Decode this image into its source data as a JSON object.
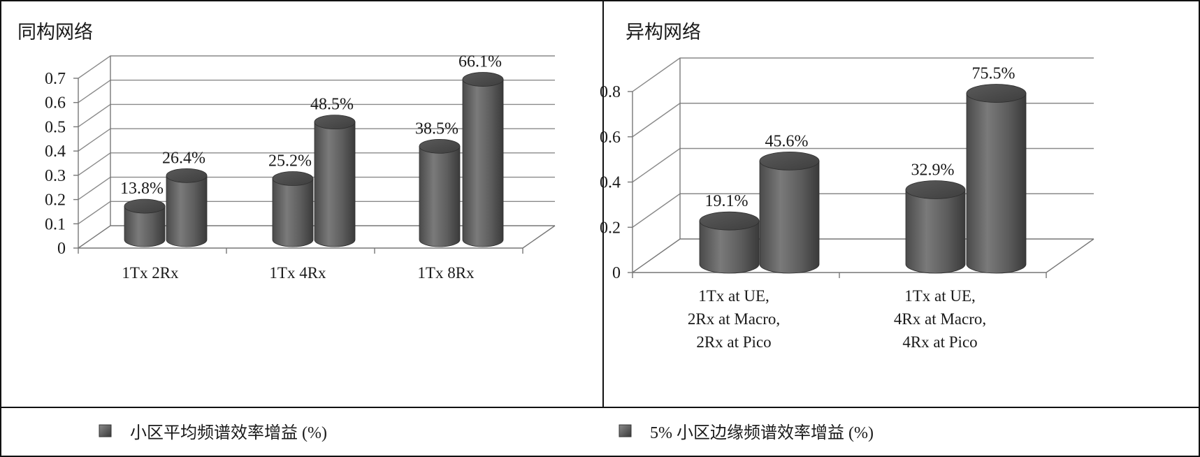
{
  "colors": {
    "bar_avg": "#6f6f6f",
    "bar_edge": "#5e5e5e",
    "grid": "#8a8a8a",
    "text": "#1a1a1a"
  },
  "legend": {
    "items": [
      {
        "label": "小区平均频谱效率增益 (%)",
        "color": "#6f6f6f"
      },
      {
        "label": "5% 小区边缘频谱效率增益 (%)",
        "color": "#5e5e5e"
      }
    ]
  },
  "chart_data": [
    {
      "type": "bar",
      "title": "同构网络",
      "categories": [
        "1Tx 2Rx",
        "1Tx 4Rx",
        "1Tx 8Rx"
      ],
      "series": [
        {
          "name": "小区平均频谱效率增益 (%)",
          "values": [
            0.138,
            0.252,
            0.385
          ],
          "labels": [
            "13.8%",
            "25.2%",
            "38.5%"
          ]
        },
        {
          "name": "5% 小区边缘频谱效率增益 (%)",
          "values": [
            0.264,
            0.485,
            0.661
          ],
          "labels": [
            "26.4%",
            "48.5%",
            "66.1%"
          ]
        }
      ],
      "ylim": [
        0,
        0.7
      ],
      "yticks": [
        "0",
        "0.1",
        "0.2",
        "0.3",
        "0.4",
        "0.5",
        "0.6",
        "0.7"
      ],
      "grid": true
    },
    {
      "type": "bar",
      "title": "异构网络",
      "categories": [
        [
          "1Tx at UE,",
          "2Rx at Macro,",
          "2Rx at Pico"
        ],
        [
          "1Tx at UE,",
          "4Rx at Macro,",
          "4Rx at Pico"
        ]
      ],
      "series": [
        {
          "name": "小区平均频谱效率增益 (%)",
          "values": [
            0.191,
            0.329
          ],
          "labels": [
            "19.1%",
            "32.9%"
          ]
        },
        {
          "name": "5% 小区边缘频谱效率增益 (%)",
          "values": [
            0.456,
            0.755
          ],
          "labels": [
            "45.6%",
            "75.5%"
          ]
        }
      ],
      "ylim": [
        0,
        0.8
      ],
      "yticks": [
        "0",
        "0.2",
        "0.4",
        "0.6",
        "0.8"
      ],
      "grid": true
    }
  ]
}
